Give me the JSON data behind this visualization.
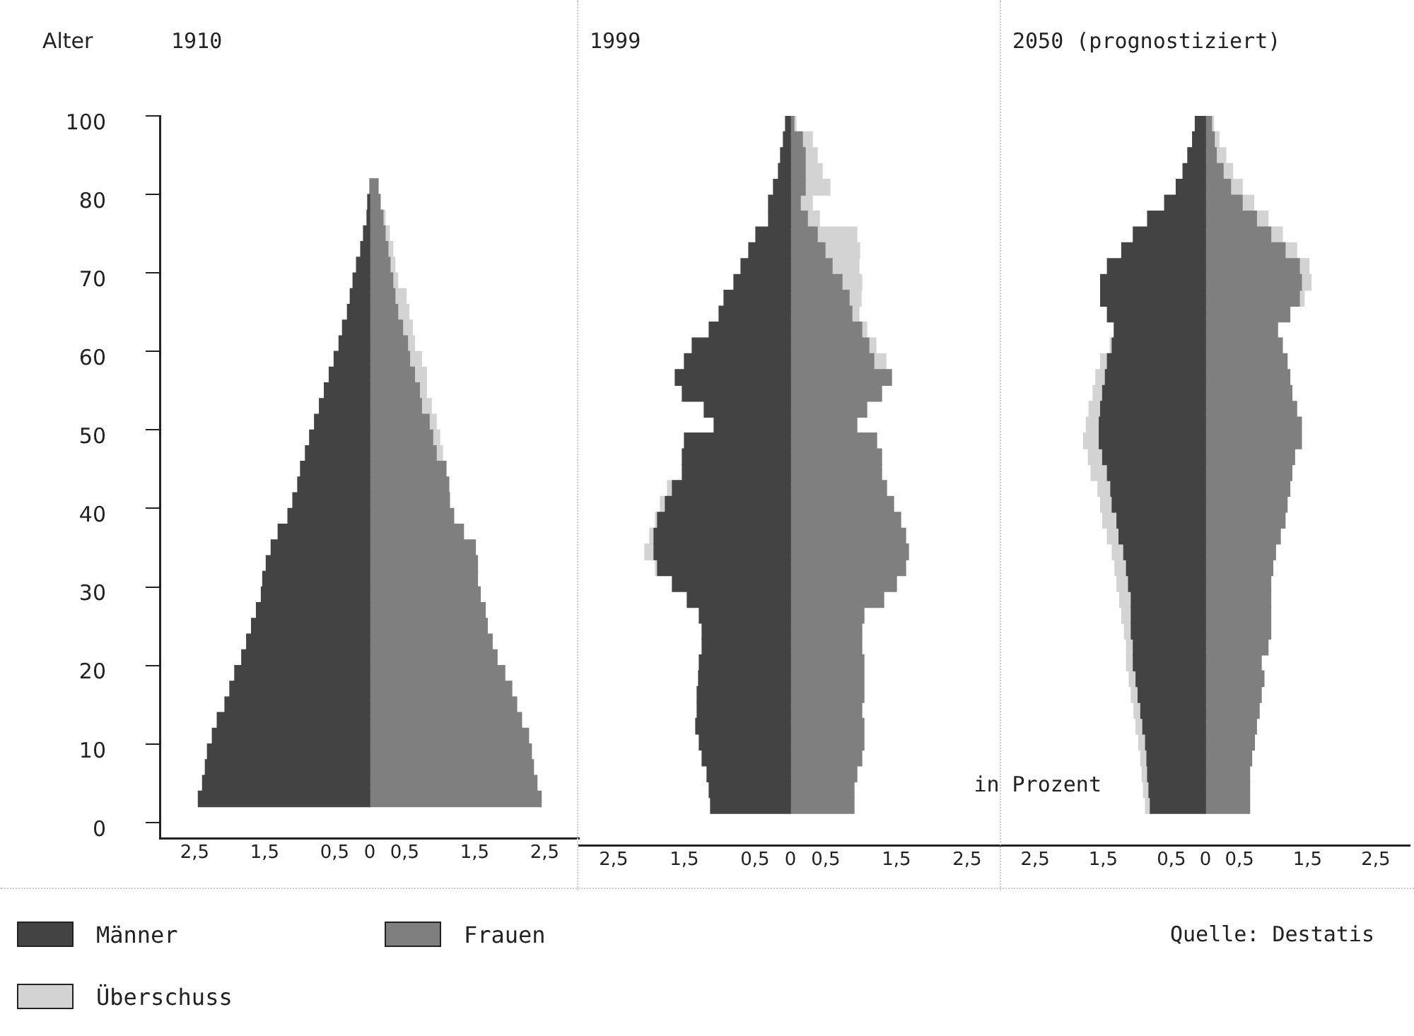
{
  "chart_data": [
    {
      "type": "bar",
      "orientation": "horizontal",
      "stacked": true,
      "title": "1910",
      "ylabel": "Alter",
      "legend": "bottom",
      "grid": false,
      "categories": [
        "100",
        null,
        null,
        null,
        null,
        "80",
        null,
        null,
        null,
        null,
        "70",
        null,
        null,
        null,
        null,
        "60",
        null,
        null,
        null,
        null,
        "50",
        null,
        null,
        null,
        null,
        "40",
        null,
        null,
        null,
        null,
        "30",
        null,
        null,
        null,
        null,
        "20",
        null,
        null,
        null,
        null,
        "10",
        null,
        null,
        null,
        null,
        "0"
      ],
      "xlim": [
        -3,
        3
      ],
      "xticks": [
        {
          "value": -2.5,
          "label": "2,5"
        },
        {
          "value": -1.5,
          "label": "1,5"
        },
        {
          "value": -0.5,
          "label": "0,5"
        },
        {
          "value": 0,
          "label": "0"
        },
        {
          "value": 0.5,
          "label": "0,5"
        },
        {
          "value": 1.5,
          "label": "1,5"
        },
        {
          "value": 2.5,
          "label": "2,5"
        }
      ],
      "series": [
        {
          "name": "Männer",
          "color": "#434343",
          "values": [
            null,
            null,
            null,
            null,
            null,
            -0.03,
            -0.04,
            -0.09,
            -0.13,
            -0.19,
            -0.24,
            -0.28,
            -0.32,
            -0.39,
            -0.44,
            -0.51,
            -0.58,
            -0.65,
            -0.72,
            -0.79,
            -0.86,
            -0.92,
            -0.99,
            -1.03,
            -1.1,
            -1.17,
            -1.31,
            -1.41,
            -1.48,
            -1.53,
            -1.55,
            -1.62,
            -1.69,
            -1.76,
            -1.83,
            -1.93,
            -2,
            -2.07,
            -2.18,
            -2.25,
            -2.32,
            -2.35,
            -2.39,
            -2.45,
            null,
            null
          ]
        },
        {
          "name": "Frauen",
          "color": "#7f7f7f",
          "values": [
            null,
            null,
            null,
            null,
            0.12,
            0.15,
            0.19,
            0.22,
            0.26,
            0.29,
            0.33,
            0.36,
            0.4,
            0.47,
            0.54,
            0.57,
            0.64,
            0.71,
            0.74,
            0.85,
            0.9,
            0.95,
            1.09,
            1.13,
            1.14,
            1.2,
            1.34,
            1.51,
            1.54,
            1.54,
            1.58,
            1.65,
            1.68,
            1.75,
            1.82,
            1.93,
            2.03,
            2.1,
            2.17,
            2.27,
            2.31,
            2.34,
            2.39,
            2.45,
            null,
            null
          ]
        },
        {
          "name": "Überschuss",
          "color": "#d3d3d3",
          "values": [
            null,
            null,
            null,
            null,
            null,
            null,
            0.03,
            0.06,
            0.07,
            0.07,
            0.07,
            0.16,
            0.16,
            0.14,
            0.1,
            0.17,
            0.17,
            0.1,
            0.14,
            0.1,
            0.1,
            0.09,
            null,
            null,
            null,
            null,
            null,
            null,
            null,
            null,
            null,
            null,
            null,
            null,
            null,
            null,
            null,
            null,
            null,
            null,
            null,
            null,
            null,
            null,
            null,
            null
          ]
        }
      ]
    },
    {
      "type": "bar",
      "orientation": "horizontal",
      "stacked": true,
      "title": "1999",
      "tick_labels": "x",
      "grid": false,
      "annotations": [
        "in Prozent"
      ],
      "categories": [
        "100",
        null,
        null,
        null,
        null,
        "80",
        null,
        null,
        null,
        null,
        "70",
        null,
        null,
        null,
        null,
        "60",
        null,
        null,
        null,
        null,
        "50",
        null,
        null,
        null,
        null,
        "40",
        null,
        null,
        null,
        null,
        "30",
        null,
        null,
        null,
        null,
        "20",
        null,
        null,
        null,
        null,
        "10",
        null,
        null,
        null,
        null,
        "0"
      ],
      "xlim": [
        -3,
        3
      ],
      "xticks": [
        {
          "value": -2.5,
          "label": "2,5"
        },
        {
          "value": -1.5,
          "label": "1,5"
        },
        {
          "value": -0.5,
          "label": "0,5"
        },
        {
          "value": 0,
          "label": "0"
        },
        {
          "value": 0.5,
          "label": "0,5"
        },
        {
          "value": 1.5,
          "label": "1,5"
        },
        {
          "value": 2.5,
          "label": "2,5"
        }
      ],
      "series": [
        {
          "color": "#434343",
          "values": [
            -0.07,
            -0.1,
            -0.14,
            -0.17,
            -0.24,
            -0.31,
            -0.31,
            -0.49,
            -0.59,
            -0.7,
            -0.8,
            -0.94,
            -1.01,
            -1.15,
            -1.39,
            -1.5,
            -1.63,
            -1.53,
            -1.22,
            -1.08,
            -1.5,
            -1.53,
            -1.53,
            -1.67,
            -1.77,
            -1.88,
            -1.93,
            -1.93,
            -1.88,
            -1.67,
            -1.46,
            -1.29,
            -1.25,
            -1.25,
            -1.29,
            -1.3,
            -1.32,
            -1.32,
            -1.34,
            -1.29,
            -1.25,
            -1.18,
            -1.15,
            -1.13,
            null,
            null
          ]
        },
        {
          "color": "#7f7f7f",
          "values": [
            0.05,
            0.17,
            0.21,
            0.21,
            0.21,
            0.14,
            0.24,
            0.38,
            0.49,
            0.59,
            0.73,
            0.83,
            0.87,
            1.01,
            1.11,
            1.18,
            1.43,
            1.29,
            1.08,
            0.94,
            1.22,
            1.29,
            1.29,
            1.36,
            1.46,
            1.56,
            1.63,
            1.67,
            1.63,
            1.5,
            1.32,
            1.04,
            1.01,
            1.01,
            1.04,
            1.04,
            1.04,
            1.01,
            1.04,
            1.04,
            1.01,
            0.94,
            0.9,
            0.9,
            null,
            null
          ]
        },
        {
          "color": "#d3d3d3",
          "values": [
            0.03,
            0.14,
            0.17,
            0.24,
            0.35,
            0.17,
            0.17,
            0.56,
            0.49,
            0.38,
            0.28,
            0.17,
            0.1,
            0.07,
            0.1,
            0.17,
            null,
            null,
            null,
            null,
            null,
            null,
            null,
            -0.07,
            -0.07,
            -0.03,
            -0.06,
            -0.13,
            -0.03,
            null,
            null,
            null,
            null,
            null,
            null,
            null,
            null,
            null,
            null,
            null,
            null,
            null,
            null,
            null,
            null,
            null
          ]
        }
      ]
    },
    {
      "type": "bar",
      "orientation": "horizontal",
      "stacked": true,
      "title": "2050 (prognostiziert)",
      "tick_labels": "x",
      "grid": false,
      "annotations": [
        "Quelle: Destatis"
      ],
      "categories": [
        "100",
        null,
        null,
        null,
        null,
        "80",
        null,
        null,
        null,
        null,
        "70",
        null,
        null,
        null,
        null,
        "60",
        null,
        null,
        null,
        null,
        "50",
        null,
        null,
        null,
        null,
        "40",
        null,
        null,
        null,
        null,
        "30",
        null,
        null,
        null,
        null,
        "20",
        null,
        null,
        null,
        null,
        "10",
        null,
        null,
        null,
        null,
        "0"
      ],
      "xlim": [
        -3,
        3
      ],
      "xticks": [
        {
          "value": -2.5,
          "label": "2,5"
        },
        {
          "value": -1.5,
          "label": "1,5"
        },
        {
          "value": -0.5,
          "label": "0,5"
        },
        {
          "value": 0,
          "label": "0"
        },
        {
          "value": 0.5,
          "label": "0,5"
        },
        {
          "value": 1.5,
          "label": "1,5"
        },
        {
          "value": 2.5,
          "label": "2,5"
        }
      ],
      "series": [
        {
          "color": "#434343",
          "values": [
            -0.15,
            -0.19,
            -0.26,
            -0.33,
            -0.43,
            -0.6,
            -0.85,
            -1.06,
            -1.23,
            -1.44,
            -1.54,
            -1.54,
            -1.44,
            -1.34,
            -1.37,
            -1.44,
            -1.47,
            -1.51,
            -1.54,
            -1.56,
            -1.56,
            -1.51,
            -1.44,
            -1.39,
            -1.37,
            -1.3,
            -1.27,
            -1.2,
            -1.16,
            -1.13,
            -1.09,
            -1.09,
            -1.09,
            -1.06,
            -1.06,
            -1.02,
            -0.99,
            -0.95,
            -0.92,
            -0.88,
            -0.86,
            -0.85,
            -0.83,
            -0.81,
            null,
            null
          ]
        },
        {
          "color": "#7f7f7f",
          "values": [
            0.09,
            0.13,
            0.16,
            0.26,
            0.37,
            0.54,
            0.75,
            0.96,
            1.17,
            1.38,
            1.41,
            1.38,
            1.24,
            1.06,
            1.13,
            1.2,
            1.24,
            1.27,
            1.34,
            1.41,
            1.41,
            1.31,
            1.27,
            1.24,
            1.2,
            1.17,
            1.1,
            1.03,
            0.99,
            0.96,
            0.96,
            0.96,
            0.96,
            0.92,
            0.82,
            0.86,
            0.82,
            0.79,
            0.75,
            0.72,
            0.68,
            0.65,
            0.65,
            0.65,
            null,
            null
          ]
        },
        {
          "color": "#d3d3d3",
          "values": [
            0.03,
            0.07,
            0.14,
            0.14,
            0.17,
            0.17,
            0.17,
            0.17,
            0.17,
            0.14,
            0.14,
            0.07,
            null,
            null,
            -0.03,
            -0.1,
            -0.14,
            -0.14,
            -0.17,
            -0.19,
            -0.23,
            -0.21,
            -0.24,
            -0.19,
            -0.17,
            -0.21,
            -0.17,
            -0.17,
            -0.17,
            -0.17,
            -0.17,
            -0.14,
            -0.1,
            -0.1,
            -0.1,
            -0.1,
            -0.1,
            -0.1,
            -0.1,
            -0.1,
            -0.09,
            -0.08,
            -0.08,
            -0.07,
            null,
            null
          ]
        }
      ]
    }
  ]
}
